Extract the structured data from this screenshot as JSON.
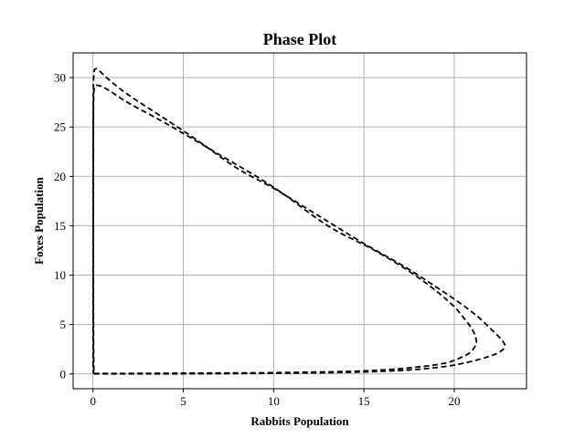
{
  "chart_data": {
    "type": "line",
    "title": "Phase Plot",
    "xlabel": "Rabbits Population",
    "ylabel": "Foxes Population",
    "xlim": [
      -1.1,
      24
    ],
    "ylim": [
      -1.5,
      32.5
    ],
    "xticks": [
      0,
      5,
      10,
      15,
      20
    ],
    "yticks": [
      0,
      5,
      10,
      15,
      20,
      25,
      30
    ],
    "xtick_labels": [
      "0",
      "5",
      "10",
      "15",
      "20"
    ],
    "ytick_labels": [
      "0",
      "5",
      "10",
      "15",
      "20",
      "25",
      "30"
    ],
    "grid": true,
    "legend": "none",
    "line_style": "dashed",
    "color": "#000000",
    "series": [
      {
        "points": [
          [
            0.05,
            0.05
          ],
          [
            2,
            0.05
          ],
          [
            5,
            0.08
          ],
          [
            8,
            0.1
          ],
          [
            11,
            0.15
          ],
          [
            14,
            0.25
          ],
          [
            16,
            0.4
          ],
          [
            18,
            0.7
          ],
          [
            19.5,
            1.1
          ],
          [
            20.3,
            1.6
          ],
          [
            20.9,
            2.2
          ],
          [
            21.2,
            3.0
          ],
          [
            21.2,
            3.6
          ],
          [
            21.0,
            4.5
          ],
          [
            20.6,
            5.5
          ],
          [
            20.0,
            6.8
          ],
          [
            19.0,
            8.4
          ],
          [
            17.5,
            10.4
          ],
          [
            15.5,
            12.6
          ],
          [
            13.0,
            15.0
          ],
          [
            10.0,
            18.9
          ],
          [
            7.0,
            22.2
          ],
          [
            4.0,
            25.4
          ],
          [
            2.0,
            27.4
          ],
          [
            0.8,
            28.8
          ],
          [
            0.3,
            29.2
          ],
          [
            0.1,
            29.0
          ],
          [
            0.03,
            27.5
          ],
          [
            0.02,
            20
          ],
          [
            0.02,
            10
          ],
          [
            0.03,
            3
          ],
          [
            0.05,
            0.05
          ]
        ]
      },
      {
        "points": [
          [
            0.05,
            0.0
          ],
          [
            3,
            0.0
          ],
          [
            6,
            0.02
          ],
          [
            9,
            0.05
          ],
          [
            12,
            0.1
          ],
          [
            15,
            0.2
          ],
          [
            17.5,
            0.4
          ],
          [
            19.5,
            0.75
          ],
          [
            20.8,
            1.2
          ],
          [
            21.8,
            1.7
          ],
          [
            22.5,
            2.2
          ],
          [
            22.8,
            2.8
          ],
          [
            22.6,
            3.5
          ],
          [
            22.0,
            4.6
          ],
          [
            21.3,
            5.8
          ],
          [
            20.3,
            7.2
          ],
          [
            19.0,
            8.8
          ],
          [
            17.3,
            10.8
          ],
          [
            15.0,
            13.2
          ],
          [
            12.5,
            16.0
          ],
          [
            10.0,
            18.8
          ],
          [
            8.0,
            20.8
          ],
          [
            5.5,
            24.0
          ],
          [
            3.5,
            26.4
          ],
          [
            2.0,
            28.2
          ],
          [
            1.0,
            29.6
          ],
          [
            0.4,
            30.6
          ],
          [
            0.15,
            30.9
          ],
          [
            0.05,
            30.4
          ],
          [
            0.02,
            28.0
          ],
          [
            0.01,
            20
          ],
          [
            0.01,
            10
          ],
          [
            0.01,
            3
          ],
          [
            0.01,
            0.5
          ],
          [
            0.05,
            0.0
          ]
        ]
      }
    ]
  }
}
